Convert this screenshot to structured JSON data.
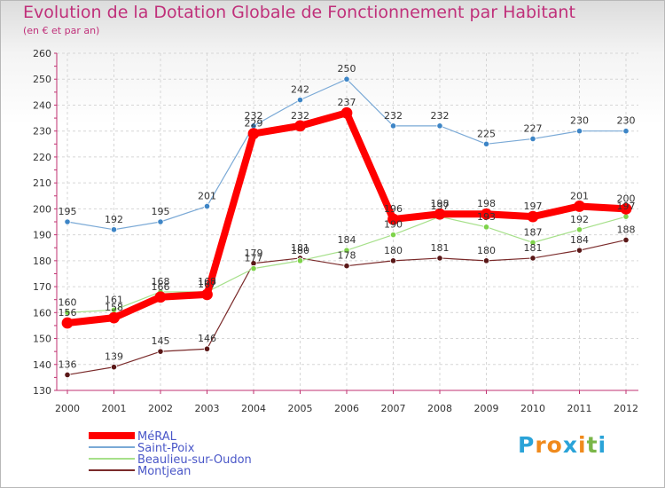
{
  "header": {
    "title": "Evolution de la Dotation Globale de Fonctionnement par Habitant",
    "subtitle": "(en € et par an)"
  },
  "logo": {
    "text": "Proxiti",
    "letters": [
      "P",
      "r",
      "o",
      "x",
      "i",
      "t",
      "i"
    ],
    "colors": [
      "#2aa3d8",
      "#f08a1c",
      "#f08a1c",
      "#2aa3d8",
      "#f08a1c",
      "#7ab648",
      "#2aa3d8"
    ]
  },
  "chart_data": {
    "type": "line",
    "title": "Evolution de la Dotation Globale de Fonctionnement par Habitant",
    "subtitle": "(en € et par an)",
    "xlabel": "",
    "ylabel": "",
    "ylim": [
      130,
      260
    ],
    "yticks": [
      130,
      140,
      150,
      160,
      170,
      180,
      190,
      200,
      210,
      220,
      230,
      240,
      250,
      260
    ],
    "categories": [
      "2000",
      "2001",
      "2002",
      "2003",
      "2004",
      "2005",
      "2006",
      "2007",
      "2008",
      "2009",
      "2010",
      "2011",
      "2012"
    ],
    "grid": true,
    "legend_position": "bottom-left",
    "series": [
      {
        "name": "Montjean",
        "color": "#7a2a2a",
        "marker": "#5a1818",
        "values": [
          136,
          139,
          145,
          146,
          179,
          181,
          178,
          180,
          181,
          180,
          181,
          184,
          188
        ]
      },
      {
        "name": "Beaulieu-sur-Oudon",
        "color": "#a6e08a",
        "marker": "#7ed34a",
        "values": [
          160,
          161,
          168,
          168,
          177,
          180,
          184,
          190,
          197,
          193,
          187,
          192,
          197
        ]
      },
      {
        "name": "Saint-Poix",
        "color": "#7aa9d6",
        "marker": "#3d85c6",
        "values": [
          195,
          192,
          195,
          201,
          232,
          242,
          250,
          232,
          232,
          225,
          227,
          230,
          230
        ]
      },
      {
        "name": "MéRAL",
        "color": "#ff0000",
        "marker": "#ff0000",
        "values": [
          156,
          158,
          166,
          167,
          229,
          232,
          237,
          196,
          198,
          198,
          197,
          201,
          200
        ]
      }
    ],
    "legend_order": [
      "MéRAL",
      "Saint-Poix",
      "Beaulieu-sur-Oudon",
      "Montjean"
    ]
  }
}
